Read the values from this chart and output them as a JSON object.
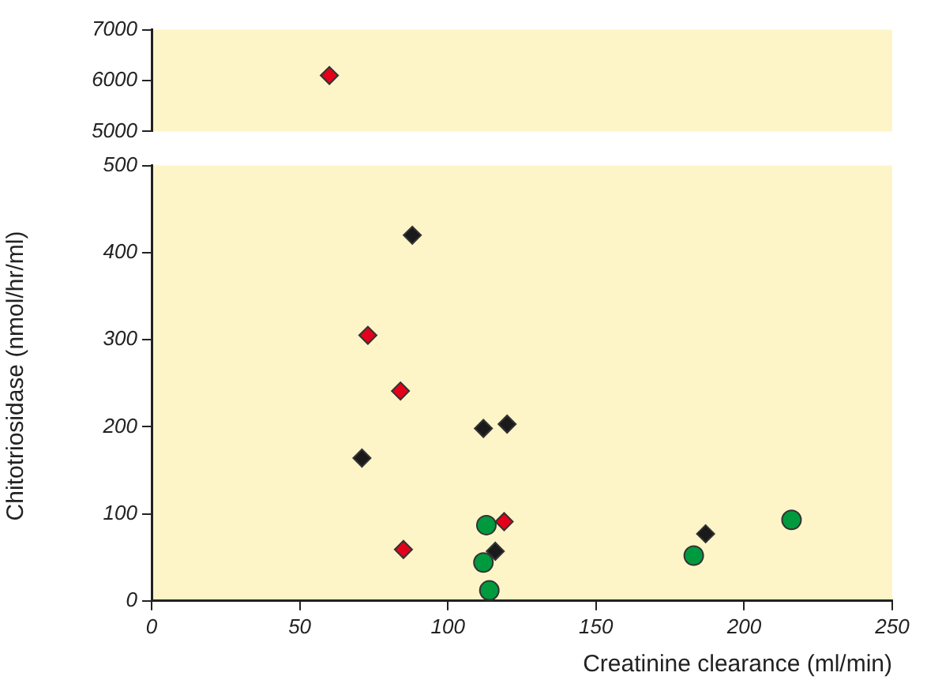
{
  "chart_data": [
    {
      "type": "scatter",
      "xlim": [
        0,
        250
      ],
      "ylim": [
        5000,
        7000
      ],
      "yticks": [
        5000,
        6000,
        7000
      ],
      "tick_labels": "y",
      "grid": false,
      "legend": false,
      "series": [
        {
          "color": "#e3001b",
          "marker": "diamond",
          "x": [
            60
          ],
          "values": [
            6100
          ]
        }
      ]
    },
    {
      "type": "scatter",
      "xlabel": "Creatinine clearance (ml/min)",
      "ylabel": "Chitotriosidase (nmol/hr/ml)",
      "xlim": [
        0,
        250
      ],
      "xticks": [
        0,
        50,
        100,
        150,
        200,
        250
      ],
      "ylim": [
        0,
        500
      ],
      "yticks": [
        0,
        100,
        200,
        300,
        400,
        500
      ],
      "grid": false,
      "legend": false,
      "series": [
        {
          "color": "#1a1a1a",
          "marker": "diamond",
          "x": [
            88,
            71,
            112,
            120,
            116,
            187
          ],
          "values": [
            420,
            164,
            198,
            203,
            57,
            77
          ]
        },
        {
          "color": "#e3001b",
          "marker": "diamond",
          "x": [
            73,
            84,
            85,
            119
          ],
          "values": [
            305,
            241,
            59,
            91
          ]
        },
        {
          "color": "#009a3e",
          "marker": "circle",
          "x": [
            113,
            112,
            114,
            183,
            216
          ],
          "values": [
            87,
            44,
            12,
            52,
            93
          ]
        }
      ]
    }
  ]
}
